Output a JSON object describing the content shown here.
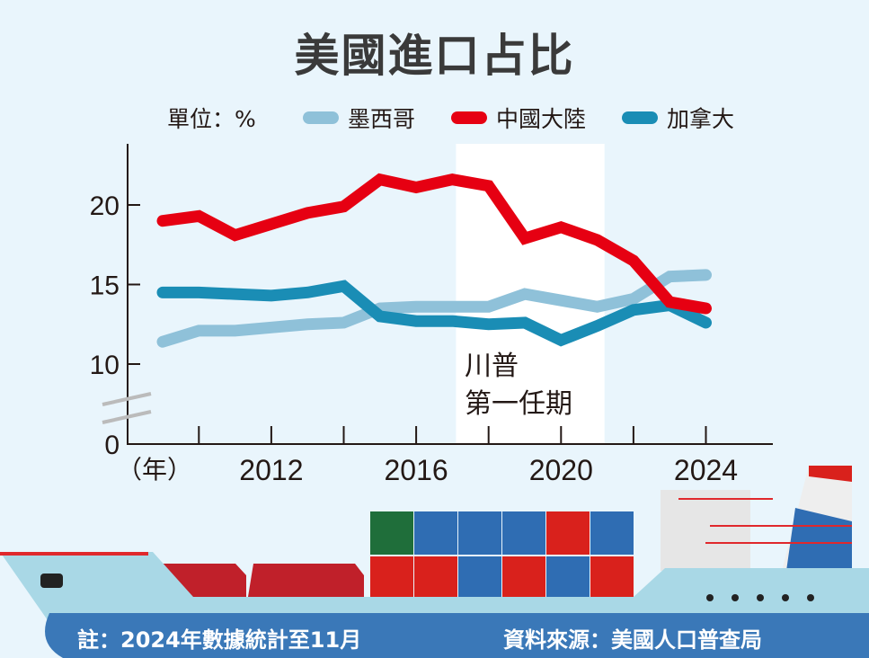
{
  "chart_data": {
    "type": "line",
    "title": "美國進口占比",
    "unit_label": "單位：%",
    "xlabel": "（年）",
    "x": [
      2009,
      2010,
      2011,
      2012,
      2013,
      2014,
      2015,
      2016,
      2017,
      2018,
      2019,
      2020,
      2021,
      2022,
      2023,
      2024
    ],
    "xlim": [
      2008.4,
      2025.8
    ],
    "x_ticks": [
      2012,
      2016,
      2020,
      2024
    ],
    "x_tick_labels": [
      "2012",
      "2016",
      "2020",
      "2024"
    ],
    "ylim": [
      0,
      23
    ],
    "y_axis_break": true,
    "y_ticks": [
      0,
      10,
      15,
      20
    ],
    "y_tick_labels": [
      "0",
      "10",
      "15",
      "20"
    ],
    "grid": false,
    "legend_position": "top",
    "series": [
      {
        "name": "墨西哥",
        "color": "#8fc1d9",
        "values": [
          11.4,
          12.1,
          12.1,
          12.3,
          12.5,
          12.6,
          13.5,
          13.6,
          13.6,
          13.6,
          14.4,
          14.0,
          13.6,
          14.1,
          15.5,
          15.6
        ]
      },
      {
        "name": "中國大陸",
        "color": "#e60012",
        "values": [
          19.0,
          19.3,
          18.1,
          18.8,
          19.5,
          19.9,
          21.6,
          21.1,
          21.6,
          21.2,
          17.9,
          18.6,
          17.8,
          16.5,
          13.9,
          13.5
        ]
      },
      {
        "name": "加拿大",
        "color": "#1a8db5",
        "values": [
          14.5,
          14.5,
          14.4,
          14.3,
          14.5,
          14.9,
          13.0,
          12.7,
          12.7,
          12.5,
          12.6,
          11.5,
          12.4,
          13.4,
          13.7,
          12.6
        ]
      }
    ],
    "annotation": {
      "text_line1": "川普",
      "text_line2": "第一任期",
      "x_range": [
        2017.1,
        2021.2
      ]
    }
  },
  "footer": {
    "note": "註：2024年數據統計至11月",
    "source": "資料來源：美國人口普查局"
  }
}
